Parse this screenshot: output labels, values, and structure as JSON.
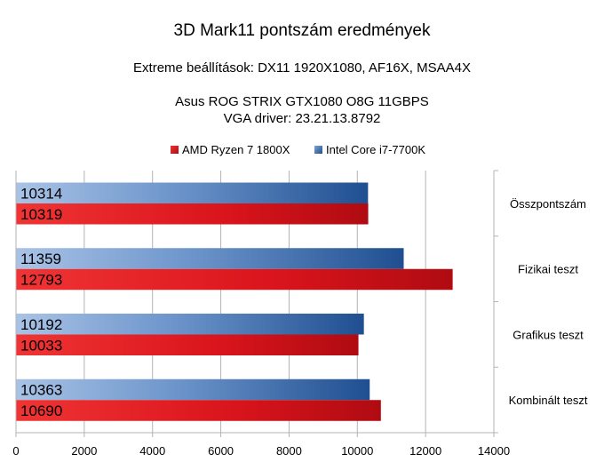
{
  "chart_data": {
    "type": "bar",
    "orientation": "horizontal",
    "title": "3D Mark11 pontszám eredmények",
    "subtitle_lines": [
      "Extreme beállítások: DX11 1920X1080, AF16X, MSAA4X",
      "",
      "Asus ROG STRIX GTX1080 O8G 11GBPS",
      "VGA driver: 23.21.13.8792"
    ],
    "categories": [
      "Összpontszám",
      "Fizikai teszt",
      "Grafikus teszt",
      "Kombinált teszt"
    ],
    "series": [
      {
        "name": "AMD Ryzen 7 1800X",
        "values": [
          10319,
          12793,
          10033,
          10690
        ],
        "color": "#d9141c"
      },
      {
        "name": "Intel Core i7-7700K",
        "values": [
          10314,
          11359,
          10192,
          10363
        ],
        "color": "#3a6ea8"
      }
    ],
    "xlim": [
      0,
      14000
    ],
    "xticks": [
      0,
      2000,
      4000,
      6000,
      8000,
      10000,
      12000,
      14000
    ],
    "grid": true,
    "legend_position": "top"
  }
}
